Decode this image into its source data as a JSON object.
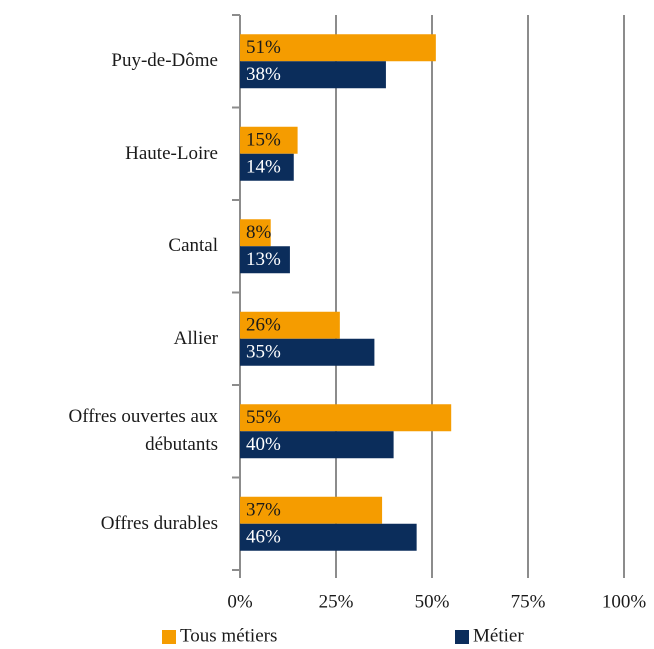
{
  "chart_data": {
    "type": "hbar",
    "categories": [
      "Puy-de-Dôme",
      "Haute-Loire",
      "Cantal",
      "Allier",
      "Offres ouvertes aux\ndébutants",
      "Offres durables"
    ],
    "series": [
      {
        "name": "Tous métiers",
        "color": "#f59c00",
        "label_color": "#1a1a1a",
        "values": [
          51,
          15,
          8,
          26,
          55,
          37
        ],
        "value_labels": [
          "51%",
          "15%",
          "8%",
          "26%",
          "55%",
          "37%"
        ]
      },
      {
        "name": "Métier",
        "color": "#0b2d5b",
        "label_color": "#ffffff",
        "values": [
          38,
          14,
          13,
          35,
          40,
          46
        ],
        "value_labels": [
          "38%",
          "14%",
          "13%",
          "35%",
          "40%",
          "46%"
        ]
      }
    ],
    "xlim": [
      0,
      100
    ],
    "xticks": [
      {
        "value": 0,
        "label": "0%"
      },
      {
        "value": 25,
        "label": "25%"
      },
      {
        "value": 50,
        "label": "50%"
      },
      {
        "value": 75,
        "label": "75%"
      },
      {
        "value": 100,
        "label": "100%"
      }
    ],
    "grid": true,
    "legend": "bottom"
  }
}
